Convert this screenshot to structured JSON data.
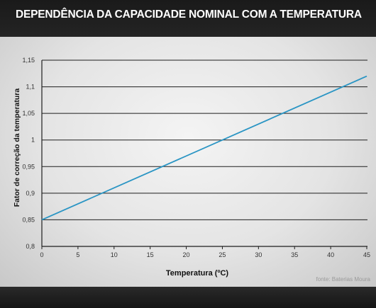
{
  "title": "DEPENDÊNCIA DA CAPACIDADE NOMINAL COM A TEMPERATURA",
  "source": "fonte: Baterias Moura",
  "colors": {
    "line": "#2a95c4",
    "grid": "#1e1e1e",
    "title_bar": "#1a1a1a",
    "panel": "#e8e8e8"
  },
  "chart_data": {
    "type": "line",
    "xlabel": "Temperatura (ºC)",
    "ylabel": "Fator de correção da temperatura",
    "xlim": [
      0,
      45
    ],
    "ylim": [
      0.8,
      1.15
    ],
    "xticks": [
      "0",
      "5",
      "10",
      "15",
      "20",
      "25",
      "30",
      "35",
      "40",
      "45"
    ],
    "yticks": [
      "0,8",
      "0,85",
      "0,9",
      "0,95",
      "1",
      "1,05",
      "1,1",
      "1,15"
    ],
    "grid": "horizontal",
    "series": [
      {
        "x": [
          0,
          45
        ],
        "y": [
          0.85,
          1.12
        ]
      }
    ]
  }
}
